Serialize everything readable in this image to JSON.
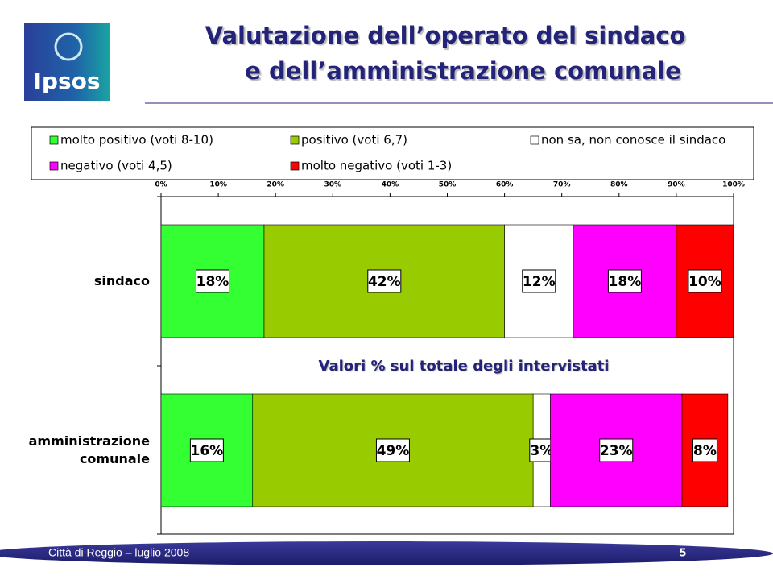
{
  "header": {
    "logo": "Ipsos",
    "title_lines": [
      "Valutazione dell’operato del sindaco",
      "e dell’amministrazione comunale"
    ]
  },
  "chart_data": {
    "type": "stacked-bar-horizontal",
    "categories": [
      "sindaco",
      "amministrazione comunale"
    ],
    "series": [
      {
        "name": "molto positivo (voti 8-10)",
        "color": "#33ff33",
        "values": [
          18,
          16
        ],
        "value_labels": [
          "18%",
          "16%"
        ]
      },
      {
        "name": "positivo (voti 6,7)",
        "color": "#99cc00",
        "values": [
          42,
          49
        ],
        "value_labels": [
          "42%",
          "49%"
        ]
      },
      {
        "name": "non sa, non conosce il sindaco",
        "color": "#ffffff",
        "values": [
          12,
          3
        ],
        "value_labels": [
          "12%",
          "3%"
        ]
      },
      {
        "name": "negativo (voti 4,5)",
        "color": "#ff00ff",
        "values": [
          18,
          23
        ],
        "value_labels": [
          "18%",
          "23%"
        ]
      },
      {
        "name": "molto negativo (voti 1-3)",
        "color": "#ff0000",
        "values": [
          10,
          8
        ],
        "value_labels": [
          "10%",
          "8%"
        ]
      }
    ],
    "xlim": [
      0,
      100
    ],
    "xticks": [
      {
        "value": 0,
        "label": "0%"
      },
      {
        "value": 10,
        "label": "10%"
      },
      {
        "value": 20,
        "label": "20%"
      },
      {
        "value": 30,
        "label": "30%"
      },
      {
        "value": 40,
        "label": "40%"
      },
      {
        "value": 50,
        "label": "50%"
      },
      {
        "value": 60,
        "label": "60%"
      },
      {
        "value": 70,
        "label": "70%"
      },
      {
        "value": 80,
        "label": "80%"
      },
      {
        "value": 90,
        "label": "90%"
      },
      {
        "value": 100,
        "label": "100%"
      }
    ],
    "annotation": "Valori % sul totale degli intervistati"
  },
  "footer": {
    "text": "Città di Reggio – luglio 2008",
    "page": 5
  }
}
